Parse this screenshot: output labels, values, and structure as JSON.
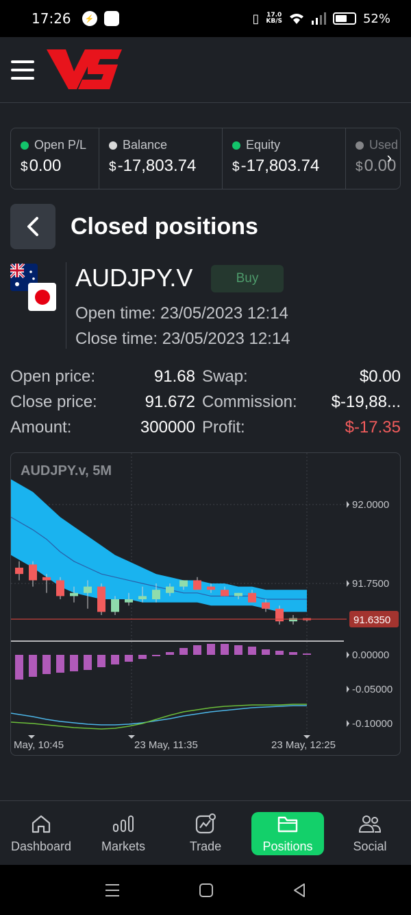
{
  "status_bar": {
    "time": "17:26",
    "net_speed_value": "17.0",
    "net_speed_unit": "KB/S",
    "battery": "52%"
  },
  "stats": [
    {
      "label": "Open P/L",
      "dot_color": "#13c46b",
      "currency": "$",
      "value": "0.00"
    },
    {
      "label": "Balance",
      "dot_color": "#d9d9d9",
      "currency": "$",
      "value": "-17,803.74"
    },
    {
      "label": "Equity",
      "dot_color": "#13c46b",
      "currency": "$",
      "value": "-17,803.74"
    },
    {
      "label": "Used",
      "dot_color": "#d9d9d9",
      "currency": "$",
      "value": "0.00"
    }
  ],
  "page": {
    "title": "Closed positions"
  },
  "position": {
    "symbol": "AUDJPY.V",
    "side": "Buy",
    "open_time": "Open time: 23/05/2023 12:14",
    "close_time": "Close time: 23/05/2023 12:14",
    "open_price_label": "Open price:",
    "open_price": "91.68",
    "close_price_label": "Close price:",
    "close_price": "91.672",
    "amount_label": "Amount:",
    "amount": "300000",
    "swap_label": "Swap:",
    "swap": "$0.00",
    "commission_label": "Commission:",
    "commission": "$-19,88...",
    "profit_label": "Profit:",
    "profit": "$-17.35"
  },
  "chart_data": {
    "type": "candlestick",
    "title": "AUDJPY.v, 5M",
    "price_ticks": [
      "92.0000",
      "91.7500"
    ],
    "current_price": "91.6350",
    "indicator_ticks": [
      "0.00000",
      "-0.05000",
      "-0.10000"
    ],
    "time_labels": [
      "May, 10:45",
      "23 May, 11:35",
      "23 May, 12:25"
    ],
    "colors": {
      "up": "#8fdcac",
      "down": "#f25c5c",
      "band": "#1ab3ef",
      "histogram": "#b05ab9"
    },
    "candles": [
      {
        "o": 91.8,
        "h": 91.82,
        "l": 91.76,
        "c": 91.78
      },
      {
        "o": 91.81,
        "h": 91.82,
        "l": 91.74,
        "c": 91.76
      },
      {
        "o": 91.77,
        "h": 91.78,
        "l": 91.72,
        "c": 91.76
      },
      {
        "o": 91.76,
        "h": 91.77,
        "l": 91.7,
        "c": 91.71
      },
      {
        "o": 91.71,
        "h": 91.74,
        "l": 91.69,
        "c": 91.72
      },
      {
        "o": 91.72,
        "h": 91.76,
        "l": 91.67,
        "c": 91.74
      },
      {
        "o": 91.74,
        "h": 91.75,
        "l": 91.65,
        "c": 91.66
      },
      {
        "o": 91.66,
        "h": 91.71,
        "l": 91.65,
        "c": 91.7
      },
      {
        "o": 91.69,
        "h": 91.72,
        "l": 91.68,
        "c": 91.7
      },
      {
        "o": 91.7,
        "h": 91.74,
        "l": 91.69,
        "c": 91.71
      },
      {
        "o": 91.7,
        "h": 91.75,
        "l": 91.69,
        "c": 91.73
      },
      {
        "o": 91.72,
        "h": 91.75,
        "l": 91.71,
        "c": 91.74
      },
      {
        "o": 91.74,
        "h": 91.76,
        "l": 91.73,
        "c": 91.76
      },
      {
        "o": 91.76,
        "h": 91.77,
        "l": 91.73,
        "c": 91.73
      },
      {
        "o": 91.74,
        "h": 91.75,
        "l": 91.72,
        "c": 91.73
      },
      {
        "o": 91.73,
        "h": 91.74,
        "l": 91.71,
        "c": 91.71
      },
      {
        "o": 91.71,
        "h": 91.72,
        "l": 91.7,
        "c": 91.72
      },
      {
        "o": 91.72,
        "h": 91.73,
        "l": 91.69,
        "c": 91.69
      },
      {
        "o": 91.69,
        "h": 91.7,
        "l": 91.66,
        "c": 91.67
      },
      {
        "o": 91.67,
        "h": 91.68,
        "l": 91.62,
        "c": 91.63
      },
      {
        "o": 91.63,
        "h": 91.65,
        "l": 91.62,
        "c": 91.64
      },
      {
        "o": 91.64,
        "h": 91.64,
        "l": 91.63,
        "c": 91.635
      }
    ],
    "histogram": [
      -0.036,
      -0.032,
      -0.028,
      -0.026,
      -0.024,
      -0.022,
      -0.018,
      -0.014,
      -0.01,
      -0.006,
      -0.002,
      0.004,
      0.01,
      0.014,
      0.016,
      0.016,
      0.014,
      0.012,
      0.008,
      0.006,
      0.004,
      0.002
    ],
    "signal_a": [
      -0.085,
      -0.09,
      -0.094,
      -0.097,
      -0.099,
      -0.101,
      -0.102,
      -0.102,
      -0.101,
      -0.099,
      -0.096,
      -0.093,
      -0.089,
      -0.086,
      -0.083,
      -0.081,
      -0.079,
      -0.077,
      -0.076,
      -0.075,
      -0.074,
      -0.074
    ],
    "signal_b": [
      -0.098,
      -0.1,
      -0.102,
      -0.104,
      -0.106,
      -0.107,
      -0.108,
      -0.107,
      -0.104,
      -0.1,
      -0.094,
      -0.088,
      -0.083,
      -0.08,
      -0.077,
      -0.075,
      -0.074,
      -0.073,
      -0.073,
      -0.073,
      -0.072,
      -0.072
    ],
    "band_upper": [
      92.08,
      92.04,
      92.0,
      91.96,
      91.93,
      91.9,
      91.87,
      91.84,
      91.82,
      91.8,
      91.78,
      91.77,
      91.76,
      91.76,
      91.75,
      91.75,
      91.74,
      91.74,
      91.73,
      91.73,
      91.73,
      91.73
    ],
    "band_lower": [
      91.84,
      91.8,
      91.77,
      91.74,
      91.72,
      91.71,
      91.7,
      91.7,
      91.7,
      91.69,
      91.69,
      91.69,
      91.69,
      91.69,
      91.68,
      91.68,
      91.68,
      91.68,
      91.67,
      91.66,
      91.66,
      91.66
    ],
    "band_mid": [
      91.96,
      91.92,
      91.89,
      91.85,
      91.82,
      91.8,
      91.78,
      91.77,
      91.76,
      91.75,
      91.74,
      91.73,
      91.72,
      91.72,
      91.71,
      91.71,
      91.71,
      91.71,
      91.7,
      91.7,
      91.7,
      91.7
    ]
  },
  "nav": [
    {
      "label": "Dashboard",
      "icon": "home-icon"
    },
    {
      "label": "Markets",
      "icon": "markets-icon"
    },
    {
      "label": "Trade",
      "icon": "trade-icon"
    },
    {
      "label": "Positions",
      "icon": "folder-icon",
      "active": true
    },
    {
      "label": "Social",
      "icon": "social-icon"
    }
  ]
}
